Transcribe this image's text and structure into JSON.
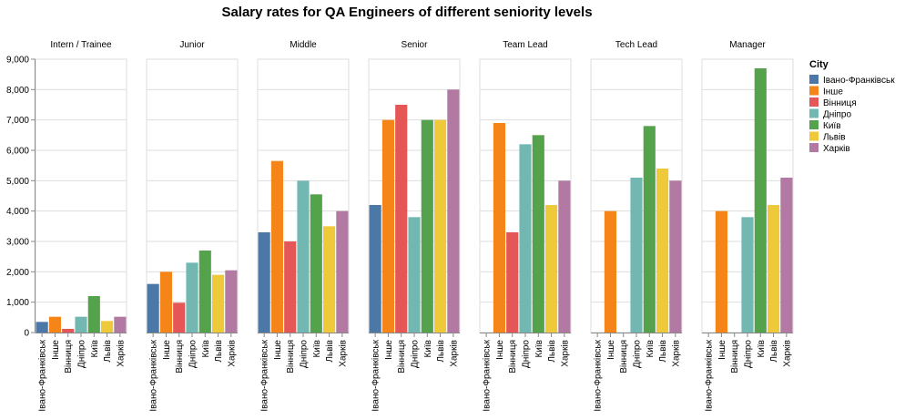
{
  "chart_data": {
    "type": "bar",
    "title": "Salary rates for QA Engineers of different seniority levels",
    "xlabel": "",
    "ylabel": "",
    "ylim": [
      0,
      9000
    ],
    "yticks": [
      0,
      1000,
      2000,
      3000,
      4000,
      5000,
      6000,
      7000,
      8000,
      9000
    ],
    "ytick_labels": [
      "0",
      "1,000",
      "2,000",
      "3,000",
      "4,000",
      "5,000",
      "6,000",
      "7,000",
      "8,000",
      "9,000"
    ],
    "grid": true,
    "legend": {
      "title": "City",
      "placement": "right"
    },
    "categories": [
      "Івано-Франківськ",
      "Інше",
      "Вінниця",
      "Дніпро",
      "Київ",
      "Львів",
      "Харків"
    ],
    "colors": [
      "#4c78a8",
      "#f58518",
      "#e45756",
      "#72b7b2",
      "#54a24b",
      "#eeca3b",
      "#b279a2"
    ],
    "facets": [
      {
        "name": "Intern / Trainee",
        "values": [
          350,
          520,
          120,
          520,
          1200,
          380,
          520
        ]
      },
      {
        "name": "Junior",
        "values": [
          1600,
          2000,
          980,
          2300,
          2700,
          1900,
          2050
        ]
      },
      {
        "name": "Middle",
        "values": [
          3300,
          5650,
          3000,
          5000,
          4550,
          3500,
          4000
        ]
      },
      {
        "name": "Senior",
        "values": [
          4200,
          7000,
          7500,
          3800,
          7000,
          7000,
          8000
        ]
      },
      {
        "name": "Team Lead",
        "values": [
          0,
          6900,
          3300,
          6200,
          6500,
          4200,
          5000
        ]
      },
      {
        "name": "Tech Lead",
        "values": [
          0,
          4000,
          0,
          5100,
          6800,
          5400,
          5000
        ]
      },
      {
        "name": "Manager",
        "values": [
          0,
          4000,
          0,
          3800,
          8700,
          4200,
          5100
        ]
      }
    ]
  }
}
